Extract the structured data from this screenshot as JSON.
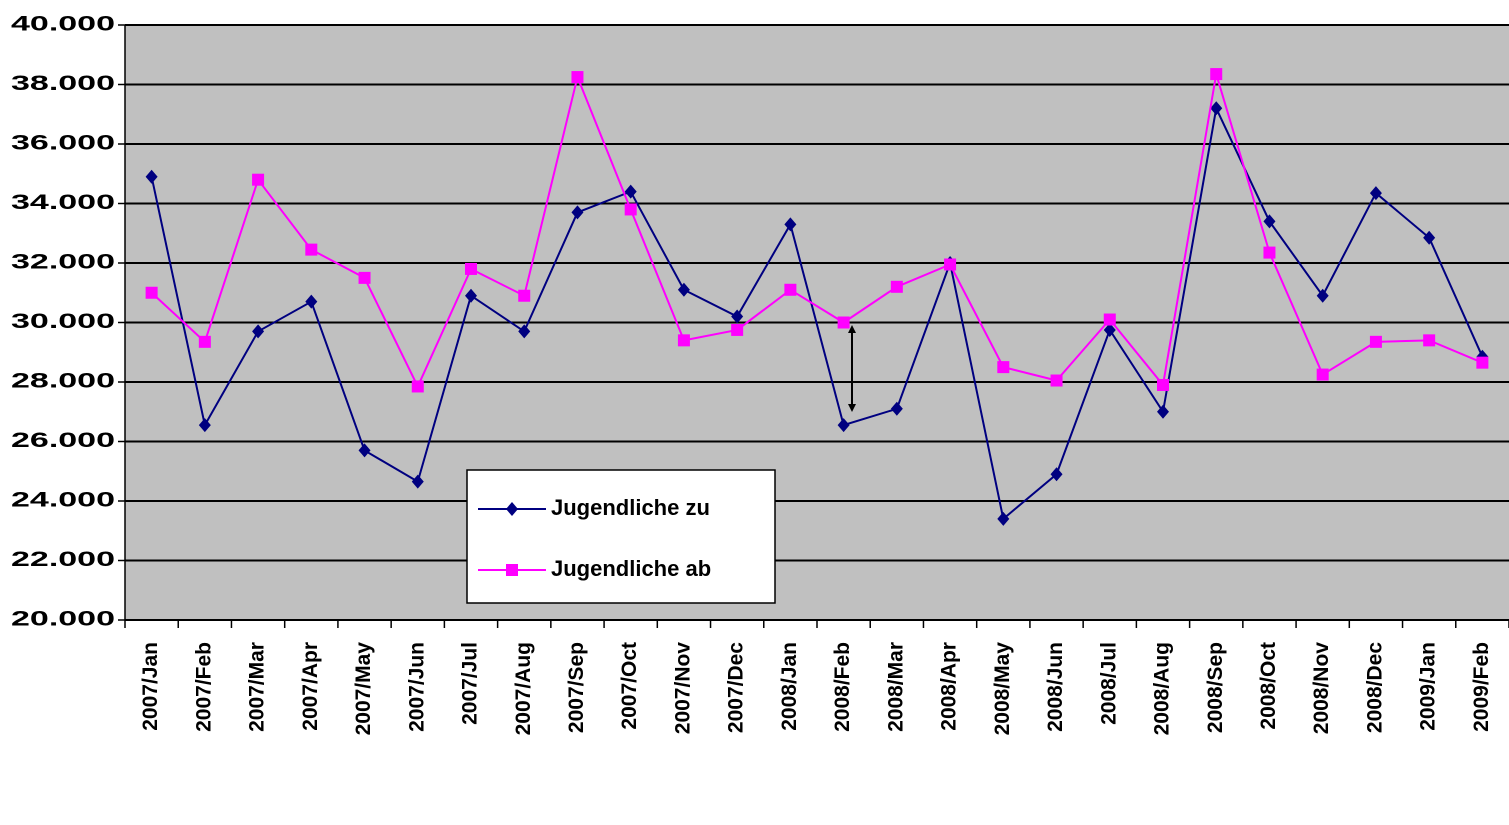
{
  "chart_data": {
    "type": "line",
    "categories": [
      "2007/Jan",
      "2007/Feb",
      "2007/Mar",
      "2007/Apr",
      "2007/May",
      "2007/Jun",
      "2007/Jul",
      "2007/Aug",
      "2007/Sep",
      "2007/Oct",
      "2007/Nov",
      "2007/Dec",
      "2008/Jan",
      "2008/Feb",
      "2008/Mar",
      "2008/Apr",
      "2008/May",
      "2008/Jun",
      "2008/Jul",
      "2008/Aug",
      "2008/Sep",
      "2008/Oct",
      "2008/Nov",
      "2008/Dec",
      "2009/Jan",
      "2009/Feb"
    ],
    "series": [
      {
        "name": "Jugendliche zu",
        "color": "#000080",
        "marker": "diamond",
        "values": [
          34900,
          26550,
          29700,
          30700,
          25700,
          24650,
          30900,
          29700,
          33700,
          34400,
          31100,
          30200,
          33300,
          26550,
          27100,
          32000,
          23400,
          24900,
          29750,
          27000,
          37200,
          33400,
          30900,
          34350,
          32850,
          28850
        ]
      },
      {
        "name": "Jugendliche ab",
        "color": "#ff00ff",
        "marker": "square",
        "values": [
          31000,
          29350,
          34800,
          32450,
          31500,
          27850,
          31800,
          30900,
          38250,
          33800,
          29400,
          29750,
          31100,
          30000,
          31200,
          31950,
          28500,
          28050,
          30100,
          27900,
          38350,
          32350,
          28250,
          29350,
          29400,
          28650
        ]
      }
    ],
    "ylim": [
      20000,
      40000
    ],
    "yticks": [
      {
        "value": 20000,
        "label": "20.000"
      },
      {
        "value": 22000,
        "label": "22.000"
      },
      {
        "value": 24000,
        "label": "24.000"
      },
      {
        "value": 26000,
        "label": "26.000"
      },
      {
        "value": 28000,
        "label": "28.000"
      },
      {
        "value": 30000,
        "label": "30.000"
      },
      {
        "value": 32000,
        "label": "32.000"
      },
      {
        "value": 34000,
        "label": "34.000"
      },
      {
        "value": 36000,
        "label": "36.000"
      },
      {
        "value": 38000,
        "label": "38.000"
      },
      {
        "value": 40000,
        "label": "40.000"
      }
    ],
    "grid": true,
    "plot_background": "#c0c0c0"
  }
}
